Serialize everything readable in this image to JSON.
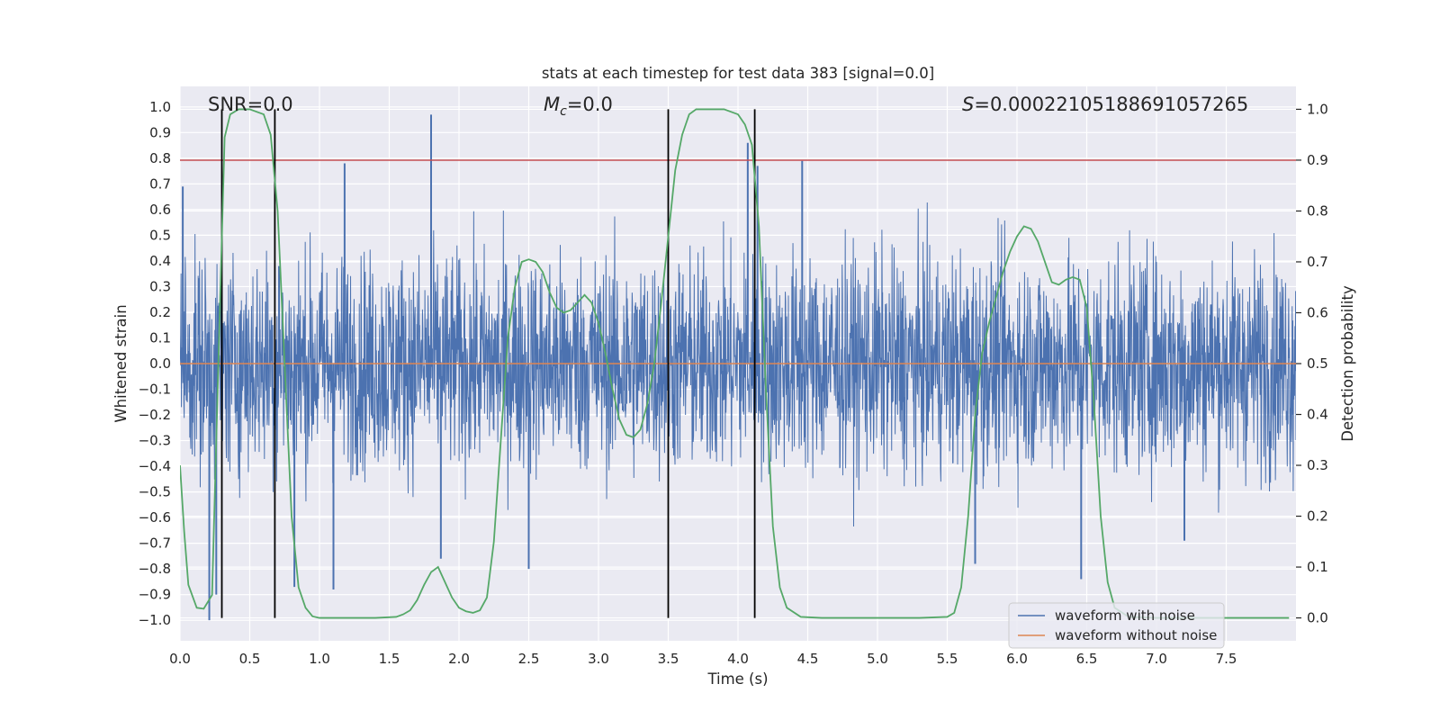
{
  "chart_data": {
    "type": "line",
    "title": "stats at each timestep for test data 383 [signal=0.0]",
    "xlabel": "Time (s)",
    "ylabel": "Whitened strain",
    "ylabel_right": "Detection probability",
    "xlim": [
      0.0,
      8.0
    ],
    "ylim": [
      -1.08,
      1.08
    ],
    "ylim_right": [
      -0.045,
      1.045
    ],
    "x_ticks": [
      0.0,
      0.5,
      1.0,
      1.5,
      2.0,
      2.5,
      3.0,
      3.5,
      4.0,
      4.5,
      5.0,
      5.5,
      6.0,
      6.5,
      7.0,
      7.5
    ],
    "x_tick_labels": [
      "0.0",
      "0.5",
      "1.0",
      "1.5",
      "2.0",
      "2.5",
      "3.0",
      "3.5",
      "4.0",
      "4.5",
      "5.0",
      "5.5",
      "6.0",
      "6.5",
      "7.0",
      "7.5"
    ],
    "y_ticks": [
      -1.0,
      -0.9,
      -0.8,
      -0.7,
      -0.6,
      -0.5,
      -0.4,
      -0.3,
      -0.2,
      -0.1,
      0.0,
      0.1,
      0.2,
      0.3,
      0.4,
      0.5,
      0.6,
      0.7,
      0.8,
      0.9,
      1.0
    ],
    "y_tick_labels": [
      "−1.0",
      "−0.9",
      "−0.8",
      "−0.7",
      "−0.6",
      "−0.5",
      "−0.4",
      "−0.3",
      "−0.2",
      "−0.1",
      "0.0",
      "0.1",
      "0.2",
      "0.3",
      "0.4",
      "0.5",
      "0.6",
      "0.7",
      "0.8",
      "0.9",
      "1.0"
    ],
    "y_right_ticks": [
      0.0,
      0.1,
      0.2,
      0.3,
      0.4,
      0.5,
      0.6,
      0.7,
      0.8,
      0.9,
      1.0
    ],
    "y_right_tick_labels": [
      "0.0",
      "0.1",
      "0.2",
      "0.3",
      "0.4",
      "0.5",
      "0.6",
      "0.7",
      "0.8",
      "0.9",
      "1.0"
    ],
    "annotations": {
      "snr": "SNR=0.0",
      "mc_symbol": "M",
      "mc_sub": "c",
      "mc_value": "=0.0",
      "s_symbol": "S",
      "s_value": "=0.00022105188691057265"
    },
    "legend": {
      "position": "lower-right",
      "entries": [
        {
          "label": "waveform with noise",
          "color": "#4c72b0"
        },
        {
          "label": "waveform without noise",
          "color": "#dd8452"
        }
      ]
    },
    "colors": {
      "noise": "#4c72b0",
      "clean": "#dd8452",
      "probability": "#55a868",
      "threshold": "#c44e52",
      "markers": "#000000",
      "axes_bg": "#eaeaf2",
      "grid": "#ffffff"
    },
    "noise_series": {
      "name": "waveform with noise",
      "t_start": 0.0,
      "t_end": 8.0,
      "sigma": 0.21,
      "spikes": [
        {
          "t": 0.02,
          "v": 0.69
        },
        {
          "t": 0.21,
          "v": -1.0
        },
        {
          "t": 0.26,
          "v": -0.9
        },
        {
          "t": 0.71,
          "v": 0.38
        },
        {
          "t": 0.82,
          "v": -0.87
        },
        {
          "t": 1.1,
          "v": -0.88
        },
        {
          "t": 1.18,
          "v": 0.78
        },
        {
          "t": 1.8,
          "v": 0.97
        },
        {
          "t": 1.87,
          "v": -0.76
        },
        {
          "t": 2.5,
          "v": -0.8
        },
        {
          "t": 4.07,
          "v": 0.86
        },
        {
          "t": 4.14,
          "v": 0.77
        },
        {
          "t": 4.46,
          "v": 0.79
        },
        {
          "t": 5.7,
          "v": -0.78
        },
        {
          "t": 6.46,
          "v": -0.84
        },
        {
          "t": 7.2,
          "v": -0.69
        }
      ]
    },
    "clean_series": {
      "name": "waveform without noise",
      "value": 0.0
    },
    "threshold": {
      "axis": "right",
      "value": 0.9
    },
    "marker_lines": [
      0.3,
      0.68,
      3.5,
      4.12
    ],
    "marker_ylim_right": [
      0.0,
      1.0
    ],
    "probability_series": {
      "name": "detection probability",
      "axis": "right",
      "t": [
        0.0,
        0.03,
        0.06,
        0.12,
        0.17,
        0.23,
        0.28,
        0.32,
        0.36,
        0.42,
        0.5,
        0.6,
        0.65,
        0.7,
        0.75,
        0.8,
        0.85,
        0.9,
        0.95,
        1.0,
        1.2,
        1.4,
        1.55,
        1.6,
        1.65,
        1.7,
        1.75,
        1.8,
        1.85,
        1.9,
        1.95,
        2.0,
        2.05,
        2.1,
        2.15,
        2.2,
        2.25,
        2.3,
        2.35,
        2.4,
        2.45,
        2.5,
        2.55,
        2.6,
        2.65,
        2.7,
        2.75,
        2.8,
        2.85,
        2.9,
        2.95,
        3.0,
        3.05,
        3.1,
        3.15,
        3.2,
        3.25,
        3.3,
        3.35,
        3.4,
        3.45,
        3.5,
        3.55,
        3.6,
        3.65,
        3.7,
        3.8,
        3.9,
        4.0,
        4.05,
        4.1,
        4.15,
        4.2,
        4.25,
        4.3,
        4.35,
        4.45,
        4.6,
        5.0,
        5.3,
        5.5,
        5.55,
        5.6,
        5.65,
        5.7,
        5.75,
        5.8,
        5.85,
        5.9,
        5.95,
        6.0,
        6.05,
        6.1,
        6.15,
        6.2,
        6.25,
        6.3,
        6.35,
        6.4,
        6.45,
        6.5,
        6.55,
        6.6,
        6.65,
        6.7,
        6.8,
        7.0,
        7.2,
        7.4,
        7.5,
        7.95
      ],
      "p": [
        0.3,
        0.17,
        0.065,
        0.02,
        0.018,
        0.045,
        0.55,
        0.945,
        0.99,
        1.0,
        1.0,
        0.99,
        0.95,
        0.8,
        0.5,
        0.2,
        0.06,
        0.02,
        0.003,
        0.0,
        0.0,
        0.0,
        0.002,
        0.007,
        0.015,
        0.035,
        0.065,
        0.09,
        0.1,
        0.07,
        0.04,
        0.02,
        0.013,
        0.01,
        0.015,
        0.04,
        0.15,
        0.35,
        0.55,
        0.65,
        0.7,
        0.705,
        0.7,
        0.68,
        0.64,
        0.61,
        0.6,
        0.605,
        0.62,
        0.635,
        0.62,
        0.58,
        0.52,
        0.45,
        0.39,
        0.36,
        0.355,
        0.37,
        0.42,
        0.5,
        0.62,
        0.75,
        0.88,
        0.95,
        0.99,
        1.0,
        1.0,
        1.0,
        0.99,
        0.97,
        0.93,
        0.77,
        0.45,
        0.18,
        0.06,
        0.02,
        0.002,
        0.0,
        0.0,
        0.0,
        0.002,
        0.01,
        0.06,
        0.2,
        0.4,
        0.52,
        0.58,
        0.63,
        0.68,
        0.72,
        0.75,
        0.77,
        0.765,
        0.74,
        0.7,
        0.66,
        0.655,
        0.665,
        0.67,
        0.665,
        0.61,
        0.43,
        0.2,
        0.07,
        0.02,
        0.002,
        0.0,
        0.0,
        0.0,
        0.0,
        0.0
      ]
    }
  }
}
